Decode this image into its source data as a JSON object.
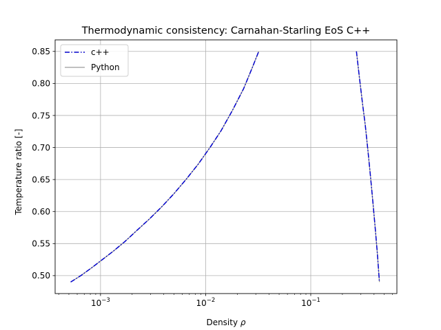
{
  "chart_data": {
    "type": "line",
    "title": "Thermodynamic consistency: Carnahan-Starling EoS C++",
    "xlabel": "Density",
    "xlabel_symbol": "ρ",
    "ylabel": "Temperature ratio [-]",
    "xscale": "log",
    "xlim": [
      0.00037,
      0.66
    ],
    "ylim": [
      0.472,
      0.868
    ],
    "x_ticks": [
      {
        "base": "10",
        "exp": "−3",
        "value": 0.001
      },
      {
        "base": "10",
        "exp": "−2",
        "value": 0.01
      },
      {
        "base": "10",
        "exp": "−1",
        "value": 0.1
      }
    ],
    "y_ticks": [
      "0.50",
      "0.55",
      "0.60",
      "0.65",
      "0.70",
      "0.75",
      "0.80",
      "0.85"
    ],
    "grid": true,
    "legend_position": "top-left",
    "series": [
      {
        "name": "c++",
        "color": "#0000cc",
        "style": "dashdot",
        "branches": [
          {
            "x": [
              0.00052,
              0.00065,
              0.00082,
              0.00104,
              0.00132,
              0.0017,
              0.0022,
              0.0029,
              0.0038,
              0.005,
              0.0065,
              0.0085,
              0.011,
              0.014,
              0.018,
              0.023,
              0.028,
              0.032
            ],
            "y": [
              0.49,
              0.5,
              0.512,
              0.525,
              0.538,
              0.553,
              0.57,
              0.588,
              0.607,
              0.628,
              0.65,
              0.674,
              0.7,
              0.726,
              0.758,
              0.792,
              0.826,
              0.85
            ]
          },
          {
            "x": [
              0.272,
              0.29,
              0.31,
              0.33,
              0.35,
              0.37,
              0.39,
              0.41,
              0.43,
              0.45
            ],
            "y": [
              0.85,
              0.81,
              0.77,
              0.735,
              0.695,
              0.655,
              0.615,
              0.575,
              0.535,
              0.49
            ]
          }
        ]
      },
      {
        "name": "Python",
        "color": "#808080",
        "style": "solid",
        "branches": [
          {
            "x": [
              0.00052,
              0.00065,
              0.00082,
              0.00104,
              0.00132,
              0.0017,
              0.0022,
              0.0029,
              0.0038,
              0.005,
              0.0065,
              0.0085,
              0.011,
              0.014,
              0.018,
              0.023,
              0.028,
              0.032
            ],
            "y": [
              0.49,
              0.5,
              0.512,
              0.525,
              0.538,
              0.553,
              0.57,
              0.588,
              0.607,
              0.628,
              0.65,
              0.674,
              0.7,
              0.726,
              0.758,
              0.792,
              0.826,
              0.85
            ]
          },
          {
            "x": [
              0.272,
              0.29,
              0.31,
              0.33,
              0.35,
              0.37,
              0.39,
              0.41,
              0.43,
              0.45
            ],
            "y": [
              0.85,
              0.81,
              0.77,
              0.735,
              0.695,
              0.655,
              0.615,
              0.575,
              0.535,
              0.49
            ]
          }
        ]
      }
    ]
  }
}
